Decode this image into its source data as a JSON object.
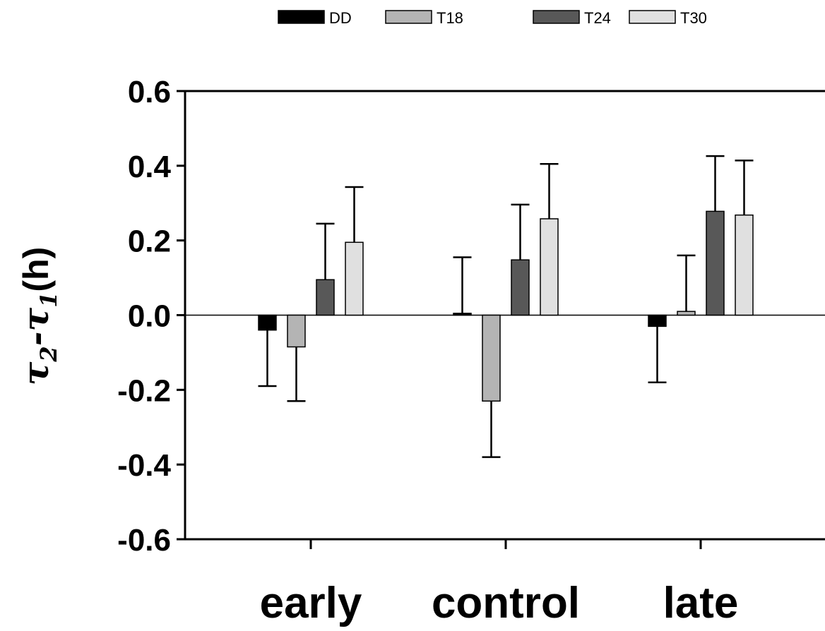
{
  "chart_data": {
    "type": "bar",
    "title": "",
    "xlabel": "",
    "ylabel_parts": {
      "tau": "τ",
      "sub2": "2",
      "dash": "-",
      "sub1": "1",
      "unit": "(h)"
    },
    "categories": [
      "early",
      "control",
      "late"
    ],
    "ylim": [
      -0.6,
      0.6
    ],
    "yticks": [
      0.6,
      0.4,
      0.2,
      0.0,
      -0.2,
      -0.4,
      -0.6
    ],
    "ytick_labels": [
      "0.6",
      "0.4",
      "0.2",
      "0.0",
      "-0.2",
      "-0.4",
      "-0.6"
    ],
    "legend_position": "top",
    "grid": false,
    "series": [
      {
        "name": "DD",
        "color": "#000000",
        "values": [
          -0.04,
          0.005,
          -0.03
        ],
        "errors": [
          0.15,
          0.15,
          0.15
        ],
        "error_direction": [
          "down",
          "up",
          "down"
        ]
      },
      {
        "name": "T18",
        "color": "#b4b4b4",
        "values": [
          -0.085,
          -0.23,
          0.01
        ],
        "errors": [
          0.145,
          0.15,
          0.15
        ],
        "error_direction": [
          "down",
          "down",
          "up"
        ]
      },
      {
        "name": "T24",
        "color": "#585858",
        "values": [
          0.095,
          0.148,
          0.278
        ],
        "errors": [
          0.15,
          0.148,
          0.148
        ],
        "error_direction": [
          "up",
          "up",
          "up"
        ]
      },
      {
        "name": "T30",
        "color": "#e0e0e0",
        "values": [
          0.195,
          0.258,
          0.268
        ],
        "errors": [
          0.148,
          0.147,
          0.146
        ],
        "error_direction": [
          "up",
          "up",
          "up"
        ]
      }
    ]
  }
}
